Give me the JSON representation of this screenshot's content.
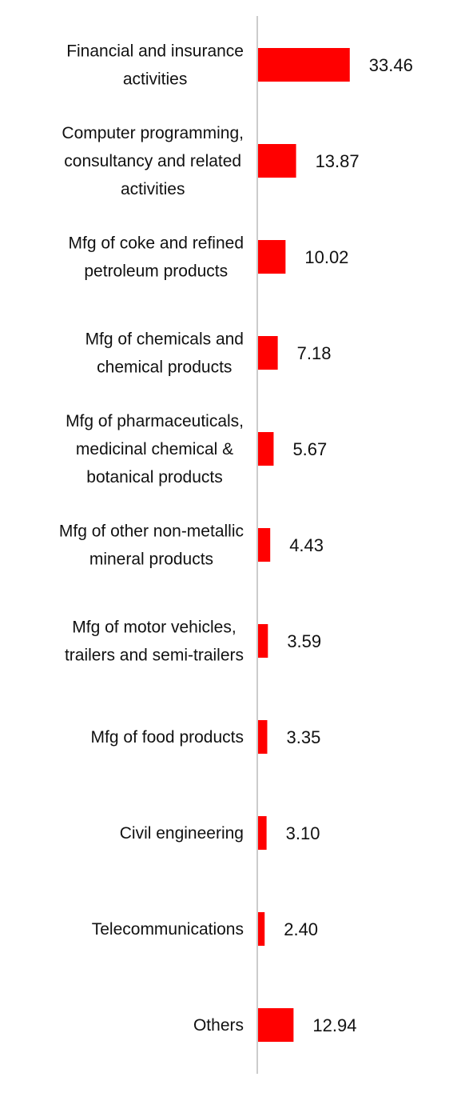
{
  "chart_data": {
    "type": "bar",
    "orientation": "horizontal",
    "categories": [
      "Financial and insurance activities",
      "Computer programming, consultancy and related activities",
      "Mfg of coke and refined petroleum products",
      "Mfg of chemicals and chemical products",
      "Mfg of pharmaceuticals, medicinal chemical & botanical products",
      "Mfg of other non-metallic mineral products",
      "Mfg of motor vehicles, trailers and semi-trailers",
      "Mfg of food products",
      "Civil engineering",
      "Telecommunications",
      "Others"
    ],
    "category_lines": [
      [
        "Financial and insurance",
        "activities"
      ],
      [
        "Computer programming,",
        "consultancy and related",
        "activities"
      ],
      [
        "Mfg of coke and refined",
        "petroleum products"
      ],
      [
        "Mfg of chemicals and",
        "chemical products"
      ],
      [
        "Mfg of pharmaceuticals,",
        "medicinal chemical &",
        "botanical products"
      ],
      [
        "Mfg of other non-metallic",
        "mineral products"
      ],
      [
        "Mfg of motor vehicles,",
        "trailers and semi-trailers"
      ],
      [
        "Mfg of food products"
      ],
      [
        "Civil engineering"
      ],
      [
        "Telecommunications"
      ],
      [
        "Others"
      ]
    ],
    "values": [
      33.46,
      13.87,
      10.02,
      7.18,
      5.67,
      4.43,
      3.59,
      3.35,
      3.1,
      2.4,
      12.94
    ],
    "value_labels": [
      "33.46",
      "13.87",
      "10.02",
      "7.18",
      "5.67",
      "4.43",
      "3.59",
      "3.35",
      "3.10",
      "2.40",
      "12.94"
    ],
    "title": "",
    "xlabel": "",
    "ylabel": "",
    "grid": false,
    "legend": "none",
    "bar_color": "#ff0000",
    "axis_color": "#cccccc"
  }
}
